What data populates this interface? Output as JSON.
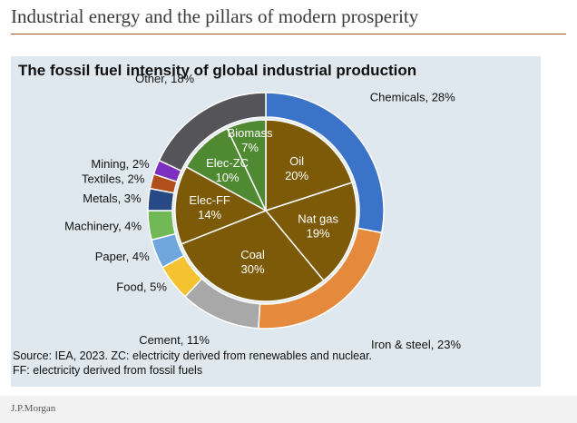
{
  "header": {
    "title": "Industrial energy and the pillars of modern prosperity"
  },
  "chart_data": {
    "type": "pie",
    "title": "The fossil fuel intensity of global industrial production",
    "outer_ring": {
      "slices": [
        {
          "label": "Chemicals, 28%",
          "value": 28,
          "color": "#3b73c9"
        },
        {
          "label": "Iron & steel, 23%",
          "value": 23,
          "color": "#e58a3d"
        },
        {
          "label": "Cement, 11%",
          "value": 11,
          "color": "#a8a8a8"
        },
        {
          "label": "Food, 5%",
          "value": 5,
          "color": "#f5c331"
        },
        {
          "label": "Paper, 4%",
          "value": 4,
          "color": "#6fa6dc"
        },
        {
          "label": "Machinery, 4%",
          "value": 4,
          "color": "#72b856"
        },
        {
          "label": "Metals, 3%",
          "value": 3,
          "color": "#274a87"
        },
        {
          "label": "Textiles, 2%",
          "value": 2,
          "color": "#b04e1c"
        },
        {
          "label": "Mining, 2%",
          "value": 2,
          "color": "#7d2fbf"
        },
        {
          "label": "Other, 18%",
          "value": 18,
          "color": "#555458"
        }
      ]
    },
    "inner_pie": {
      "slices": [
        {
          "name": "Oil",
          "pct": "20%",
          "value": 20,
          "color": "#7d5a08"
        },
        {
          "name": "Nat gas",
          "pct": "19%",
          "value": 19,
          "color": "#7d5a08"
        },
        {
          "name": "Coal",
          "pct": "30%",
          "value": 30,
          "color": "#7d5a08"
        },
        {
          "name": "Elec-FF",
          "pct": "14%",
          "value": 14,
          "color": "#7d5a08"
        },
        {
          "name": "Elec-ZC",
          "pct": "10%",
          "value": 10,
          "color": "#4f8a33"
        },
        {
          "name": "Biomass",
          "pct": "7%",
          "value": 7,
          "color": "#4f8a33"
        }
      ]
    }
  },
  "source": {
    "line1": "Source: IEA, 2023.  ZC: electricity derived from renewables and nuclear.",
    "line2": "FF: electricity derived from fossil fuels"
  },
  "footer": {
    "logo_text": "J.P.Morgan"
  }
}
